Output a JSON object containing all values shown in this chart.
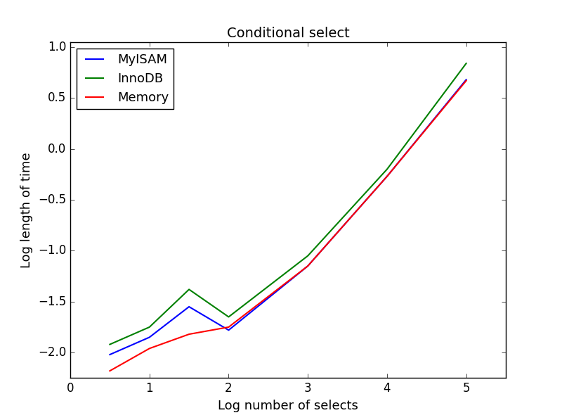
{
  "title": "Conditional select",
  "xlabel": "Log number of selects",
  "ylabel": "Log length of time",
  "xlim": [
    0,
    5.5
  ],
  "ylim": [
    -2.25,
    1.05
  ],
  "xticks": [
    0,
    1,
    2,
    3,
    4,
    5
  ],
  "yticks": [
    -2.0,
    -1.5,
    -1.0,
    -0.5,
    0.0,
    0.5,
    1.0
  ],
  "series": [
    {
      "label": "MyISAM",
      "color": "blue",
      "x": [
        0.5,
        1.0,
        1.5,
        2.0,
        3.0,
        4.0,
        5.0
      ],
      "y": [
        -2.02,
        -1.85,
        -1.55,
        -1.78,
        -1.15,
        -0.27,
        0.68
      ]
    },
    {
      "label": "InnoDB",
      "color": "green",
      "x": [
        0.5,
        1.0,
        1.5,
        2.0,
        3.0,
        4.0,
        5.0
      ],
      "y": [
        -1.92,
        -1.75,
        -1.38,
        -1.65,
        -1.05,
        -0.2,
        0.84
      ]
    },
    {
      "label": "Memory",
      "color": "red",
      "x": [
        0.5,
        1.0,
        1.5,
        2.0,
        3.0,
        4.0,
        5.0
      ],
      "y": [
        -2.18,
        -1.96,
        -1.82,
        -1.75,
        -1.15,
        -0.27,
        0.67
      ]
    }
  ],
  "legend_loc": "upper left",
  "background_color": "#ffffff",
  "line_width": 1.5,
  "title_fontsize": 14,
  "label_fontsize": 13,
  "tick_fontsize": 12
}
